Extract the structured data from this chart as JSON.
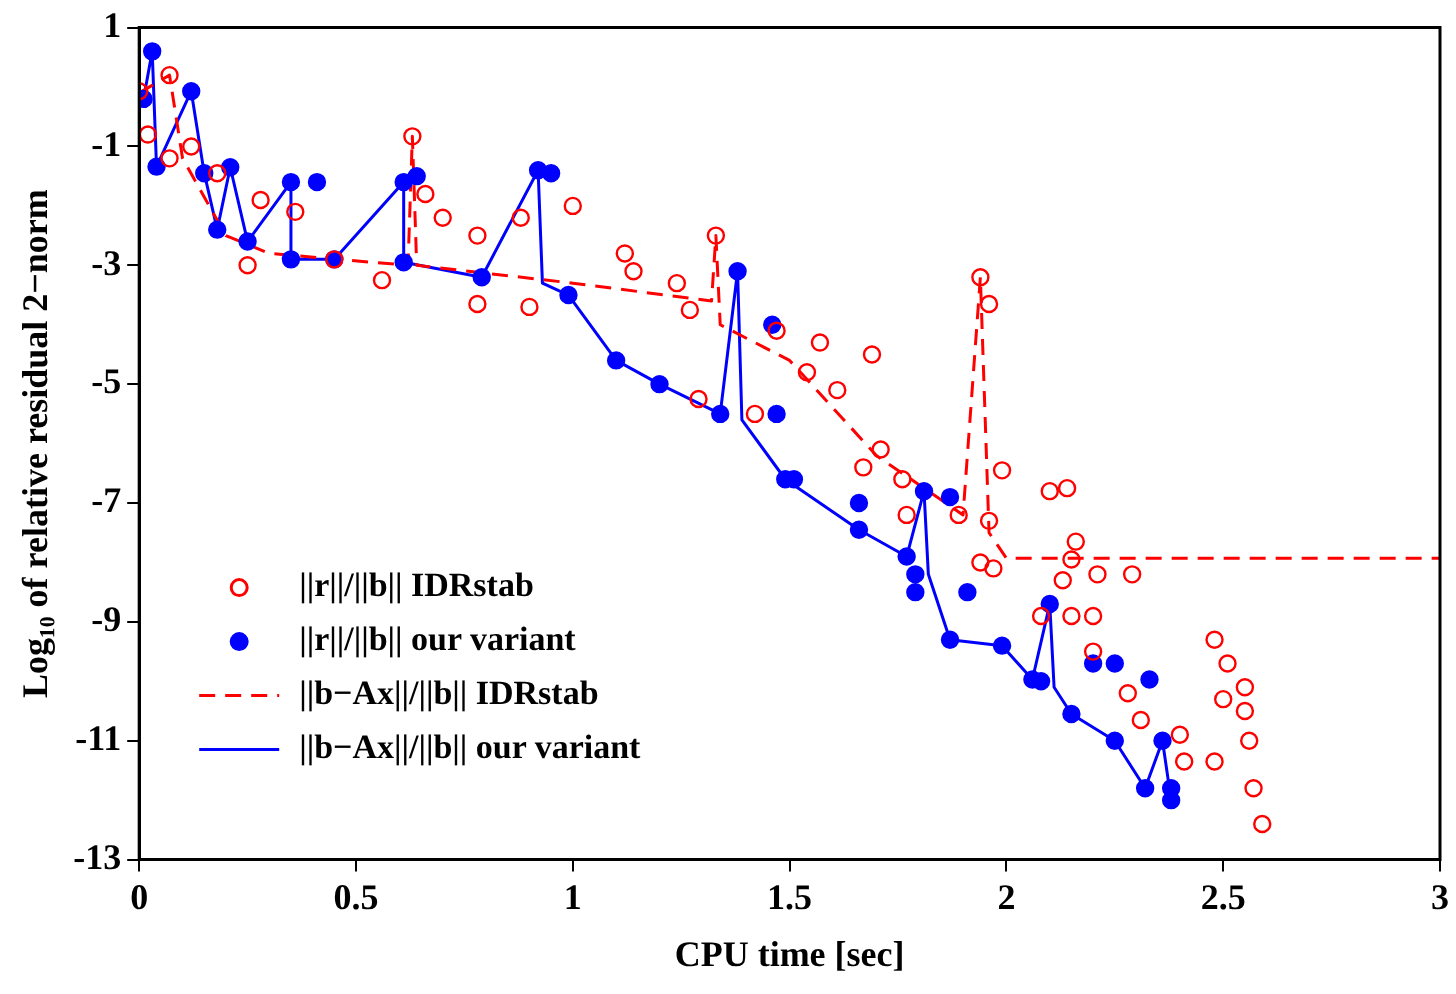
{
  "chart_data": {
    "type": "scatter",
    "xlabel": "CPU time [sec]",
    "ylabel": "Log₁₀ of relative residual 2−norm",
    "xlim": [
      0,
      3
    ],
    "xticks": [
      0,
      0.5,
      1,
      1.5,
      2,
      2.5,
      3
    ],
    "ylim": [
      -13,
      1
    ],
    "yticks": [
      1,
      -1,
      -3,
      -5,
      -7,
      -9,
      -11,
      -13
    ],
    "grid": false,
    "legend": "bottom left",
    "series": [
      {
        "name": "||r||/||b|| IDRstab",
        "marker": "circle",
        "color": "#ff0000",
        "x": [
          0,
          0.02,
          0.07,
          0.07,
          0.12,
          0.18,
          0.25,
          0.28,
          0.36,
          0.45,
          0.56,
          0.63,
          0.66,
          0.7,
          0.78,
          0.78,
          0.88,
          0.9,
          1,
          1.12,
          1.14,
          1.24,
          1.27,
          1.29,
          1.33,
          1.42,
          1.47,
          1.54,
          1.57,
          1.61,
          1.67,
          1.69,
          1.71,
          1.76,
          1.77,
          1.89,
          1.94,
          1.94,
          1.96,
          1.96,
          1.97,
          1.99,
          2.08,
          2.1,
          2.13,
          2.14,
          2.15,
          2.15,
          2.16,
          2.2,
          2.2,
          2.21,
          2.28,
          2.29,
          2.31,
          2.4,
          2.41,
          2.48,
          2.48,
          2.5,
          2.51,
          2.55,
          2.55,
          2.56,
          2.57,
          2.59
        ],
        "values": [
          -0.07,
          -0.8,
          0.2,
          -1.2,
          -1.0,
          -1.45,
          -3.0,
          -1.9,
          -2.1,
          -2.9,
          -3.25,
          -0.83,
          -1.8,
          -2.2,
          -2.5,
          -3.65,
          -2.2,
          -3.7,
          -2.0,
          -2.8,
          -3.1,
          -3.3,
          -3.75,
          -5.25,
          -2.5,
          -5.5,
          -4.1,
          -4.8,
          -4.3,
          -5.1,
          -6.4,
          -4.5,
          -6.1,
          -6.6,
          -7.2,
          -7.2,
          -3.2,
          -8.0,
          -3.65,
          -7.3,
          -8.1,
          -6.45,
          -8.9,
          -6.8,
          -8.3,
          -6.75,
          -7.95,
          -8.9,
          -7.65,
          -8.9,
          -9.5,
          -8.2,
          -10.2,
          -8.2,
          -10.65,
          -10.9,
          -11.35,
          -9.3,
          -11.35,
          -10.3,
          -9.7,
          -10.1,
          -10.5,
          -11.0,
          -11.8,
          -12.4
        ]
      },
      {
        "name": "||r||/||b|| our variant",
        "marker": "circle",
        "color": "#0000ff",
        "x": [
          0.01,
          0.03,
          0.04,
          0.12,
          0.15,
          0.18,
          0.21,
          0.25,
          0.35,
          0.35,
          0.41,
          0.45,
          0.61,
          0.61,
          0.64,
          0.79,
          0.92,
          0.95,
          0.99,
          1.1,
          1.2,
          1.34,
          1.38,
          1.46,
          1.47,
          1.49,
          1.51,
          1.66,
          1.66,
          1.77,
          1.79,
          1.79,
          1.81,
          1.87,
          1.87,
          1.91,
          1.99,
          2.06,
          2.08,
          2.1,
          2.15,
          2.2,
          2.25,
          2.25,
          2.32,
          2.33,
          2.36,
          2.38,
          2.38
        ],
        "values": [
          -0.2,
          0.6,
          -1.34,
          -0.07,
          -1.45,
          -2.4,
          -1.35,
          -2.6,
          -1.6,
          -2.9,
          -1.6,
          -2.9,
          -1.6,
          -2.95,
          -1.5,
          -3.2,
          -1.4,
          -1.45,
          -3.5,
          -4.6,
          -5.0,
          -5.5,
          -3.1,
          -4.0,
          -5.5,
          -6.6,
          -6.6,
          -7.0,
          -7.45,
          -7.9,
          -8.5,
          -8.2,
          -6.8,
          -6.9,
          -9.3,
          -8.5,
          -9.4,
          -9.97,
          -10.0,
          -8.7,
          -10.55,
          -9.7,
          -11.0,
          -9.7,
          -11.8,
          -9.97,
          -11.0,
          -12.0,
          -11.8
        ]
      },
      {
        "name": "||b−Ax||/||b|| IDRstab",
        "type": "line",
        "marker": "none",
        "line_style": "dashed",
        "color": "#ff0000",
        "x": [
          0,
          0.07,
          0.1,
          0.2,
          0.3,
          0.62,
          0.63,
          0.64,
          1.0,
          1.32,
          1.33,
          1.34,
          1.5,
          1.7,
          1.9,
          1.94,
          1.96,
          2.0,
          3
        ],
        "values": [
          -0.1,
          0.2,
          -1.2,
          -2.5,
          -2.8,
          -3.0,
          -0.83,
          -3.0,
          -3.3,
          -3.6,
          -2.5,
          -4.0,
          -4.6,
          -6.2,
          -7.2,
          -3.2,
          -7.5,
          -7.93,
          -7.93
        ]
      },
      {
        "name": "||b−Ax||/||b|| our variant",
        "type": "line",
        "marker": "none",
        "line_style": "solid",
        "color": "#0000ff",
        "x": [
          0.01,
          0.03,
          0.04,
          0.12,
          0.15,
          0.18,
          0.21,
          0.25,
          0.35,
          0.35,
          0.45,
          0.61,
          0.61,
          0.79,
          0.92,
          0.93,
          0.99,
          1.1,
          1.2,
          1.34,
          1.38,
          1.39,
          1.49,
          1.66,
          1.77,
          1.81,
          1.82,
          1.87,
          1.99,
          2.06,
          2.1,
          2.11,
          2.15,
          2.25,
          2.32,
          2.36,
          2.38
        ],
        "values": [
          -0.2,
          0.6,
          -1.34,
          -0.07,
          -1.45,
          -2.4,
          -1.35,
          -2.6,
          -1.6,
          -2.9,
          -2.9,
          -1.6,
          -2.95,
          -3.2,
          -1.4,
          -3.3,
          -3.5,
          -4.6,
          -5.0,
          -5.5,
          -3.1,
          -5.6,
          -6.6,
          -7.45,
          -7.9,
          -6.8,
          -8.2,
          -9.3,
          -9.4,
          -9.97,
          -8.7,
          -10.1,
          -10.55,
          -11.0,
          -11.8,
          -11.0,
          -12.0
        ]
      }
    ]
  }
}
